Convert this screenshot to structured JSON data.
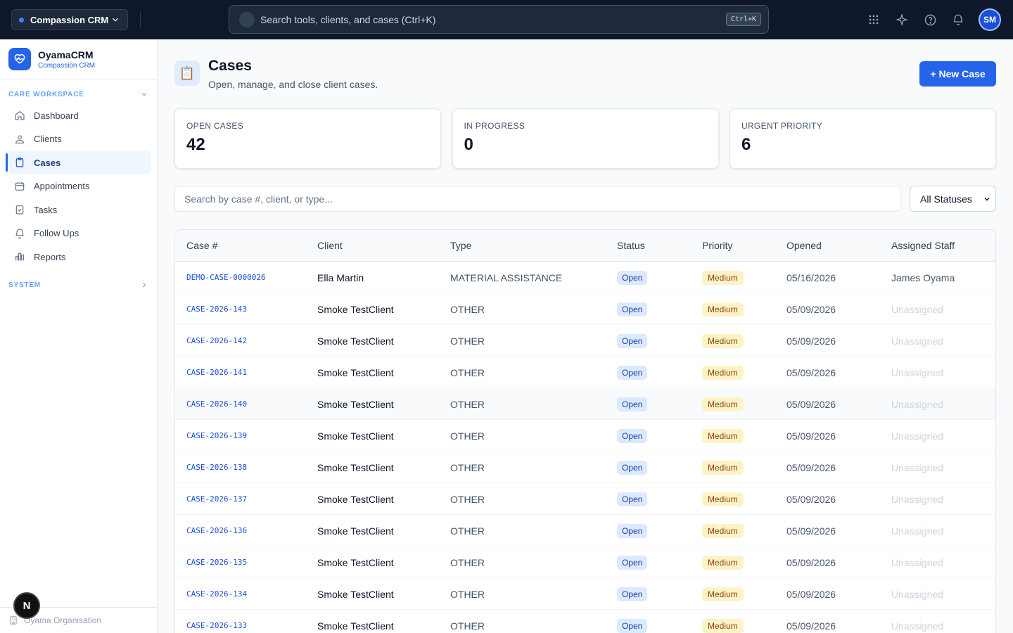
{
  "topbar": {
    "org_name": "Compassion CRM",
    "search_placeholder": "Search tools, clients, and cases (Ctrl+K)",
    "shortcut": "Ctrl+K",
    "avatar_initials": "SM"
  },
  "sidebar": {
    "brand_name": "OyamaCRM",
    "brand_sub": "Compassion CRM",
    "section_care": "CARE WORKSPACE",
    "items": [
      {
        "label": "Dashboard"
      },
      {
        "label": "Clients"
      },
      {
        "label": "Cases"
      },
      {
        "label": "Appointments"
      },
      {
        "label": "Tasks"
      },
      {
        "label": "Follow Ups"
      },
      {
        "label": "Reports"
      }
    ],
    "section_system": "SYSTEM",
    "footer_org": "Oyama Organisation",
    "n_badge": "N"
  },
  "page": {
    "icon": "📋",
    "title": "Cases",
    "subtitle": "Open, manage, and close client cases.",
    "new_button": "+ New Case"
  },
  "stats": [
    {
      "label": "OPEN CASES",
      "value": "42"
    },
    {
      "label": "IN PROGRESS",
      "value": "0"
    },
    {
      "label": "URGENT PRIORITY",
      "value": "6"
    }
  ],
  "filters": {
    "search_placeholder": "Search by case #, client, or type...",
    "status_selected": "All Statuses"
  },
  "table": {
    "headers": [
      "Case #",
      "Client",
      "Type",
      "Status",
      "Priority",
      "Opened",
      "Assigned Staff"
    ],
    "rows": [
      {
        "case": "DEMO-CASE-0000026",
        "client": "Ella Martin",
        "type": "MATERIAL ASSISTANCE",
        "status": "Open",
        "priority": "Medium",
        "opened": "05/16/2026",
        "staff": "James Oyama"
      },
      {
        "case": "CASE-2026-143",
        "client": "Smoke TestClient",
        "type": "OTHER",
        "status": "Open",
        "priority": "Medium",
        "opened": "05/09/2026",
        "staff": "Unassigned"
      },
      {
        "case": "CASE-2026-142",
        "client": "Smoke TestClient",
        "type": "OTHER",
        "status": "Open",
        "priority": "Medium",
        "opened": "05/09/2026",
        "staff": "Unassigned"
      },
      {
        "case": "CASE-2026-141",
        "client": "Smoke TestClient",
        "type": "OTHER",
        "status": "Open",
        "priority": "Medium",
        "opened": "05/09/2026",
        "staff": "Unassigned"
      },
      {
        "case": "CASE-2026-140",
        "client": "Smoke TestClient",
        "type": "OTHER",
        "status": "Open",
        "priority": "Medium",
        "opened": "05/09/2026",
        "staff": "Unassigned"
      },
      {
        "case": "CASE-2026-139",
        "client": "Smoke TestClient",
        "type": "OTHER",
        "status": "Open",
        "priority": "Medium",
        "opened": "05/09/2026",
        "staff": "Unassigned"
      },
      {
        "case": "CASE-2026-138",
        "client": "Smoke TestClient",
        "type": "OTHER",
        "status": "Open",
        "priority": "Medium",
        "opened": "05/09/2026",
        "staff": "Unassigned"
      },
      {
        "case": "CASE-2026-137",
        "client": "Smoke TestClient",
        "type": "OTHER",
        "status": "Open",
        "priority": "Medium",
        "opened": "05/09/2026",
        "staff": "Unassigned"
      },
      {
        "case": "CASE-2026-136",
        "client": "Smoke TestClient",
        "type": "OTHER",
        "status": "Open",
        "priority": "Medium",
        "opened": "05/09/2026",
        "staff": "Unassigned"
      },
      {
        "case": "CASE-2026-135",
        "client": "Smoke TestClient",
        "type": "OTHER",
        "status": "Open",
        "priority": "Medium",
        "opened": "05/09/2026",
        "staff": "Unassigned"
      },
      {
        "case": "CASE-2026-134",
        "client": "Smoke TestClient",
        "type": "OTHER",
        "status": "Open",
        "priority": "Medium",
        "opened": "05/09/2026",
        "staff": "Unassigned"
      },
      {
        "case": "CASE-2026-133",
        "client": "Smoke TestClient",
        "type": "OTHER",
        "status": "Open",
        "priority": "Medium",
        "opened": "05/09/2026",
        "staff": "Unassigned"
      }
    ]
  }
}
